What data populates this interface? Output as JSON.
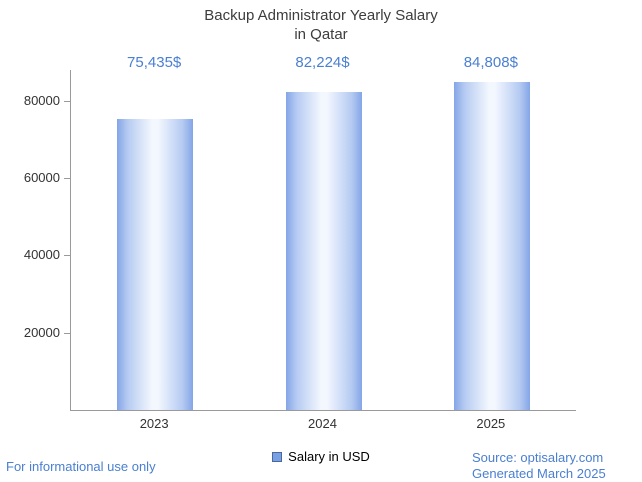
{
  "title": {
    "line1": "Backup Administrator Yearly Salary",
    "line2": "in Qatar"
  },
  "chart_data": {
    "type": "bar",
    "title": "Backup Administrator Yearly Salary in Qatar",
    "categories": [
      "2023",
      "2024",
      "2025"
    ],
    "values": [
      75435,
      82224,
      84808
    ],
    "value_labels": [
      "75,435$",
      "82,224$",
      "84,808$"
    ],
    "xlabel": "",
    "ylabel": "",
    "ylim": [
      0,
      88000
    ],
    "yticks": [
      20000,
      40000,
      60000,
      80000
    ],
    "grid": false,
    "legend": {
      "label": "Salary in USD",
      "position": "bottom"
    },
    "bar_color_edge": "#84a5e6",
    "bar_color_center": "#f3f7fe"
  },
  "footer": {
    "disclaimer": "For informational use only",
    "source": "Source: optisalary.com",
    "generated": "Generated March 2025"
  },
  "colors": {
    "accent_blue": "#4a7fd1",
    "axis": "#9a9a9a",
    "text_dark": "#3d3d3d"
  }
}
